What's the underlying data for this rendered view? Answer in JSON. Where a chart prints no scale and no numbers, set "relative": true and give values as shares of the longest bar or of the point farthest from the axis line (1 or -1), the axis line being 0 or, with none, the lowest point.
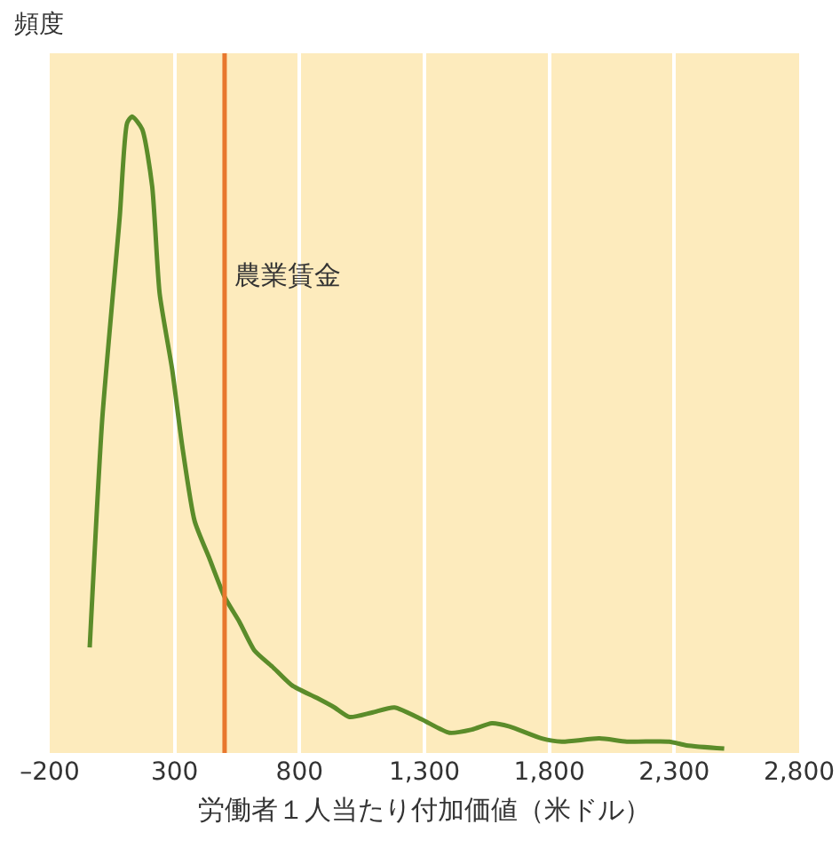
{
  "chart_data": {
    "type": "line",
    "xlabel": "労働者１人当たり付加価値（米ドル）",
    "ylabel": "頻度",
    "relative": true,
    "x": [
      -40,
      10,
      80,
      110,
      130,
      170,
      210,
      240,
      290,
      330,
      380,
      440,
      500,
      560,
      620,
      690,
      770,
      870,
      940,
      1000,
      1090,
      1180,
      1290,
      1400,
      1490,
      1570,
      1640,
      1770,
      1850,
      2000,
      2110,
      2280,
      2350,
      2500
    ],
    "series": [
      {
        "color": "#5b8c2a",
        "values": [
          0.16,
          0.52,
          0.84,
          0.99,
          1,
          0.98,
          0.89,
          0.72,
          0.6,
          0.48,
          0.36,
          0.3,
          0.24,
          0.2,
          0.155,
          0.13,
          0.1,
          0.08,
          0.065,
          0.05,
          0.057,
          0.065,
          0.046,
          0.025,
          0.03,
          0.04,
          0.035,
          0.016,
          0.011,
          0.016,
          0.011,
          0.011,
          0.005,
          0
        ]
      }
    ],
    "xlim": [
      -200,
      2800
    ],
    "xticks": [
      {
        "value": -200,
        "label": "–200"
      },
      300,
      800,
      {
        "value": 1300,
        "label": "1,300"
      },
      {
        "value": 1800,
        "label": "1,800"
      },
      {
        "value": 2300,
        "label": "2,300"
      },
      {
        "value": 2800,
        "label": "2,800"
      }
    ],
    "grid": "x",
    "legend": false,
    "marker": "none",
    "line_style": "solid",
    "ref_lines": [
      {
        "axis": "x",
        "value": 500,
        "label": "農業賃金",
        "color": "#e8772e"
      }
    ]
  }
}
